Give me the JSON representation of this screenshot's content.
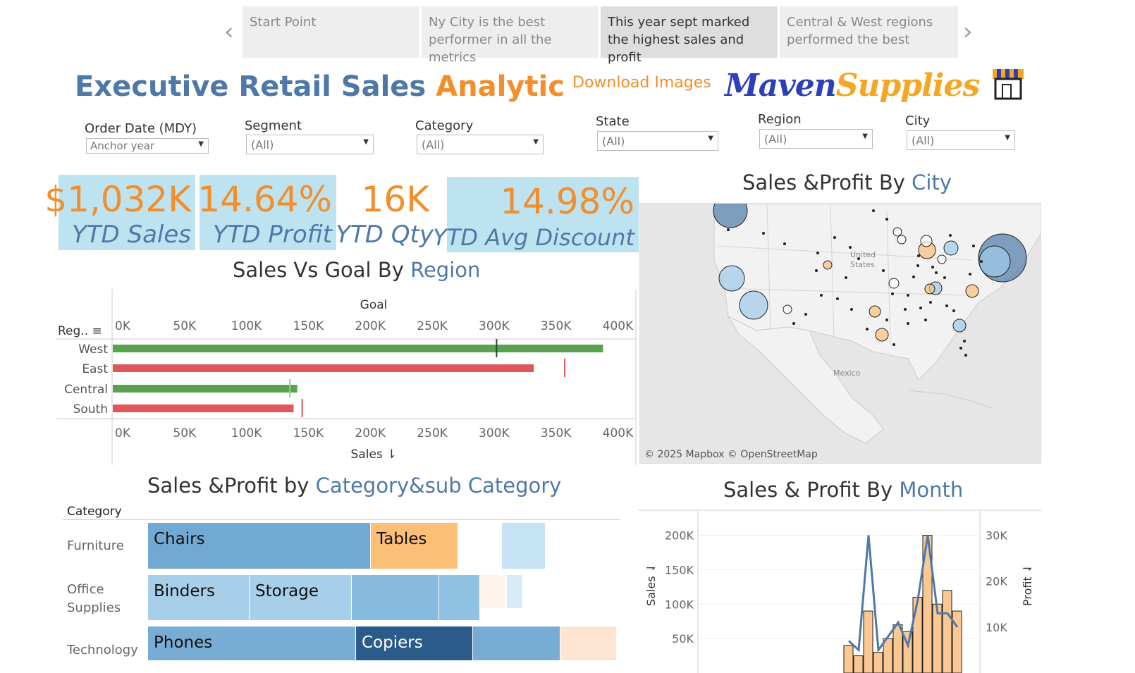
{
  "story": {
    "tabs": [
      {
        "label": "Start Point"
      },
      {
        "label": "Ny City is the best performer in all the metrics"
      },
      {
        "label": "This year sept marked the highest sales and profit"
      },
      {
        "label": "Central & West regions performed the best"
      }
    ]
  },
  "header": {
    "title_part1": "Executive Retail Sales ",
    "title_part2": "Analytic",
    "download_label": "Download Images",
    "logo_part1": "Maven",
    "logo_part2": "Supplies"
  },
  "filters": [
    {
      "label": "Order Date (MDY)",
      "value": "Anchor year"
    },
    {
      "label": "Segment",
      "value": "(All)"
    },
    {
      "label": "Category",
      "value": "(All)"
    },
    {
      "label": "State",
      "value": "(All)"
    },
    {
      "label": "Region",
      "value": "(All)"
    },
    {
      "label": "City",
      "value": "(All)"
    }
  ],
  "kpis": [
    {
      "value": "$1,032K",
      "label": "YTD Sales"
    },
    {
      "value": "14.64%",
      "label": "YTD Profit"
    },
    {
      "value": "16K",
      "label": "YTD Qty"
    },
    {
      "value": "14.98%",
      "label": "YTD Avg Discount"
    }
  ],
  "region_chart": {
    "title_part1": "Sales Vs Goal By ",
    "title_part2": "Region",
    "top_axis_title": "Goal",
    "bottom_axis_title": "Sales",
    "row_header": "Reg..",
    "ticks": [
      "0K",
      "50K",
      "100K",
      "150K",
      "200K",
      "250K",
      "300K",
      "350K",
      "400K"
    ]
  },
  "chart_data": [
    {
      "type": "bar",
      "orientation": "horizontal",
      "categories": [
        "West",
        "East",
        "Central",
        "South"
      ],
      "series": [
        {
          "name": "Sales",
          "values": [
            396000,
            340000,
            149000,
            146000
          ]
        },
        {
          "name": "Goal",
          "values": [
            310000,
            365000,
            143000,
            153000
          ]
        }
      ],
      "bar_colors": [
        "#59a14f",
        "#e15759",
        "#59a14f",
        "#e15759"
      ],
      "xlim": [
        0,
        410000
      ],
      "xlabel": "Sales"
    },
    {
      "type": "line",
      "title": "Sales & Profit By Month",
      "ylabel": "Sales",
      "y2label": "Profit",
      "ylim": [
        0,
        220000
      ],
      "y2lim": [
        0,
        33000
      ],
      "yticks": [
        "50K",
        "100K",
        "150K",
        "200K"
      ],
      "y2ticks": [
        "10K",
        "20K",
        "30K"
      ],
      "sales_bars": [
        40000,
        25000,
        90000,
        30000,
        50000,
        70000,
        60000,
        110000,
        200000,
        100000,
        120000,
        90000
      ],
      "profit_line": [
        7000,
        5000,
        30000,
        5000,
        8000,
        11000,
        6000,
        16000,
        30000,
        13000,
        13000,
        10000
      ]
    }
  ],
  "map": {
    "title_part1": "Sales &Profit By ",
    "title_part2": "City",
    "label_us": "United States",
    "label_mexico": "Mexico",
    "attribution": "© 2025 Mapbox © OpenStreetMap"
  },
  "treemap": {
    "title_part1": "Sales &Profit by ",
    "title_part2": "Category&sub Category",
    "header": "Category",
    "rows": [
      {
        "category": "Furniture",
        "tiles": [
          {
            "label": "Chairs",
            "color": "#72a9d2"
          },
          {
            "label": "Tables",
            "color": "#fbbf77"
          },
          {
            "label": "",
            "color": "#ffffff"
          },
          {
            "label": "",
            "color": "#c6e2f5"
          }
        ]
      },
      {
        "category": "Office Supplies",
        "tiles": [
          {
            "label": "Binders",
            "color": "#a7cfe9"
          },
          {
            "label": "Storage",
            "color": "#a7cfe9"
          },
          {
            "label": "",
            "color": "#86bbdf"
          },
          {
            "label": "",
            "color": "#8fc2e3"
          },
          {
            "label": "",
            "color": "#fff3ea"
          },
          {
            "label": "",
            "color": "#d8ecf8"
          }
        ]
      },
      {
        "category": "Technology",
        "tiles": [
          {
            "label": "Phones",
            "color": "#77add4"
          },
          {
            "label": "Copiers",
            "color": "#2b5b8a"
          },
          {
            "label": "",
            "color": "#77add4"
          },
          {
            "label": "",
            "color": "#fde5d2"
          }
        ]
      }
    ]
  },
  "month_chart": {
    "title_part1": "Sales & Profit By ",
    "title_part2": "Month"
  }
}
